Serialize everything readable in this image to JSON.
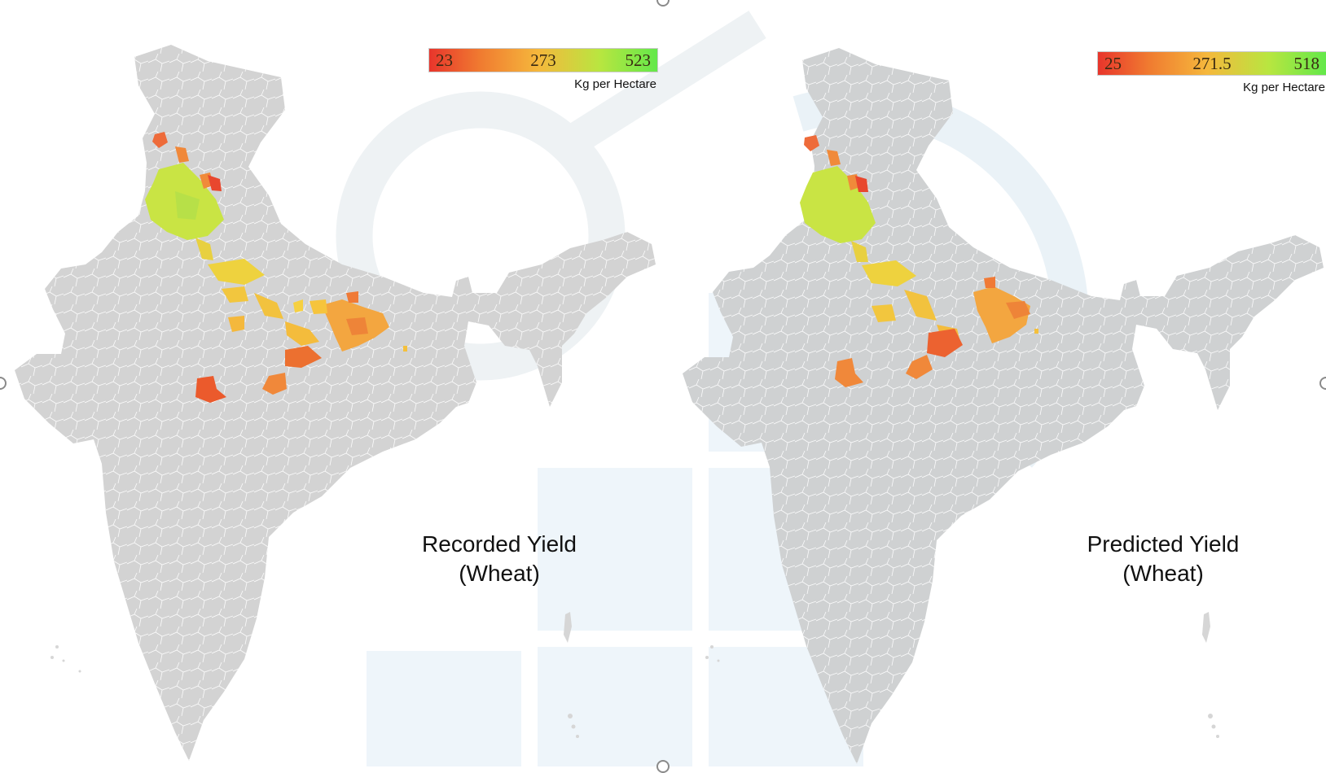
{
  "maps": [
    {
      "title_line1": "Recorded Yield",
      "title_line2": "(Wheat)",
      "legend": {
        "min": "23",
        "mid": "273",
        "max": "523",
        "unit": "Kg per Hectare"
      }
    },
    {
      "title_line1": "Predicted Yield",
      "title_line2": "(Wheat)",
      "legend": {
        "min": "25",
        "mid": "271.5",
        "max": "518",
        "unit": "Kg per Hectare"
      }
    }
  ],
  "colors": {
    "land": "#d3d3d3",
    "district_border": "#ffffff",
    "low_yield": "#e8352c",
    "mid_yield": "#f5c23c",
    "high_yield": "#63e84a"
  }
}
